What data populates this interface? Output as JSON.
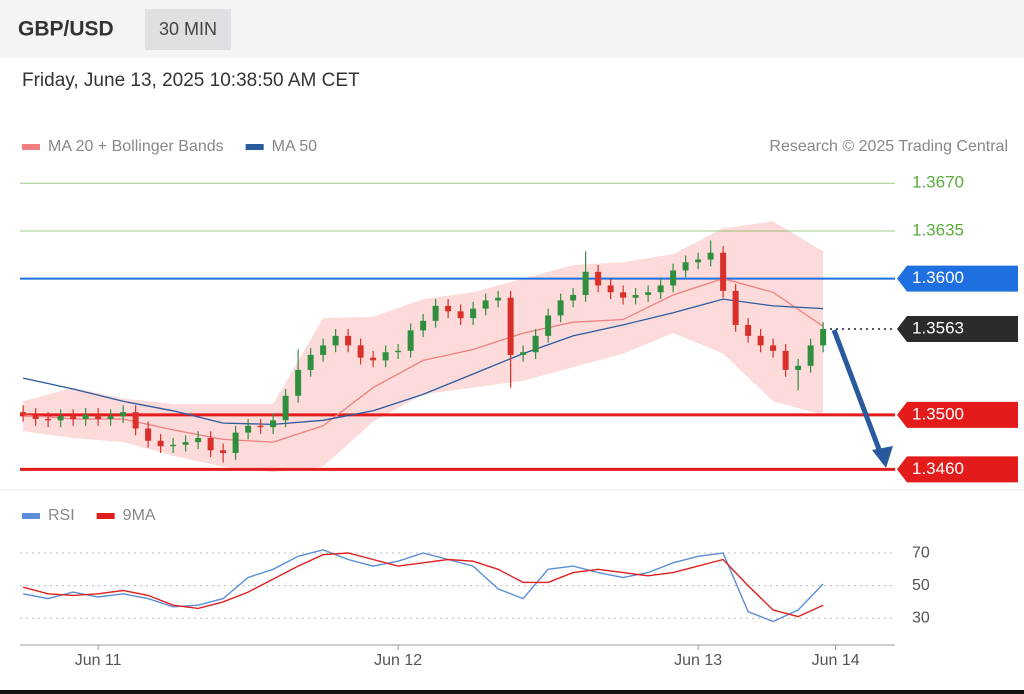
{
  "header": {
    "symbol": "GBP/USD",
    "timeframe": "30 MIN"
  },
  "timestamp": "Friday, June 13, 2025 10:38:50 AM CET",
  "chart_data": [
    {
      "type": "candlestick",
      "credit": "Research © 2025 Trading Central",
      "xlim": [
        -6.25,
        63.75
      ],
      "ylim": [
        1.345,
        1.369
      ],
      "up_color": "#2f8f3f",
      "down_color": "#d9302b",
      "x": [
        -6,
        -5,
        -4,
        -3,
        -2,
        -1,
        0,
        1,
        2,
        3,
        4,
        5,
        6,
        7,
        8,
        9,
        10,
        11,
        12,
        13,
        14,
        15,
        16,
        17,
        18,
        19,
        20,
        21,
        22,
        23,
        24,
        25,
        26,
        27,
        28,
        29,
        30,
        31,
        32,
        33,
        34,
        35,
        36,
        37,
        38,
        39,
        40,
        41,
        42,
        43,
        44,
        45,
        46,
        47,
        48,
        49,
        50,
        51,
        52,
        53,
        54,
        55,
        56,
        57,
        58
      ],
      "open": [
        1.3502,
        1.35,
        1.3497,
        1.3496,
        1.3499,
        1.3497,
        1.35,
        1.3497,
        1.3499,
        1.3502,
        1.349,
        1.3481,
        1.3477,
        1.3478,
        1.348,
        1.3483,
        1.3474,
        1.3472,
        1.3487,
        1.3492,
        1.3491,
        1.3496,
        1.3514,
        1.3533,
        1.3544,
        1.3551,
        1.3558,
        1.3551,
        1.3542,
        1.354,
        1.3546,
        1.3547,
        1.3562,
        1.3569,
        1.358,
        1.3576,
        1.3571,
        1.3578,
        1.3584,
        1.3586,
        1.3544,
        1.3546,
        1.3558,
        1.3573,
        1.3584,
        1.3588,
        1.3605,
        1.3595,
        1.359,
        1.3586,
        1.3588,
        1.359,
        1.3595,
        1.3606,
        1.3612,
        1.3614,
        1.3619,
        1.3591,
        1.3566,
        1.3558,
        1.3551,
        1.3547,
        1.3533,
        1.3536,
        1.3551
      ],
      "high": [
        1.3507,
        1.3505,
        1.3502,
        1.3504,
        1.3504,
        1.3505,
        1.3505,
        1.3504,
        1.3507,
        1.3507,
        1.3495,
        1.3486,
        1.3483,
        1.3485,
        1.3488,
        1.3488,
        1.3479,
        1.3492,
        1.3497,
        1.3497,
        1.3501,
        1.3519,
        1.3548,
        1.3549,
        1.3556,
        1.3563,
        1.3563,
        1.3556,
        1.3547,
        1.3551,
        1.3552,
        1.3567,
        1.3574,
        1.3585,
        1.3585,
        1.3581,
        1.3583,
        1.3589,
        1.3591,
        1.3591,
        1.3551,
        1.3563,
        1.3578,
        1.3589,
        1.3593,
        1.362,
        1.361,
        1.36,
        1.3595,
        1.3593,
        1.3595,
        1.36,
        1.3611,
        1.3617,
        1.3619,
        1.3628,
        1.3624,
        1.3596,
        1.3571,
        1.3563,
        1.3556,
        1.3552,
        1.3541,
        1.3556,
        1.3568
      ],
      "low": [
        1.3495,
        1.3492,
        1.3491,
        1.3491,
        1.3492,
        1.3492,
        1.3492,
        1.3492,
        1.3494,
        1.3485,
        1.3476,
        1.3472,
        1.3472,
        1.3473,
        1.3475,
        1.3469,
        1.3465,
        1.3467,
        1.3482,
        1.3486,
        1.3486,
        1.3491,
        1.3509,
        1.3528,
        1.3539,
        1.3546,
        1.3546,
        1.3537,
        1.3535,
        1.3535,
        1.3541,
        1.3542,
        1.3557,
        1.3564,
        1.3571,
        1.3566,
        1.3566,
        1.3573,
        1.3579,
        1.352,
        1.3539,
        1.3541,
        1.3553,
        1.3568,
        1.3579,
        1.3583,
        1.359,
        1.3585,
        1.3581,
        1.3581,
        1.3583,
        1.3585,
        1.359,
        1.3601,
        1.3607,
        1.3609,
        1.3586,
        1.3561,
        1.3553,
        1.3546,
        1.3542,
        1.3528,
        1.3518,
        1.3531,
        1.3546
      ],
      "close": [
        1.35,
        1.3497,
        1.3496,
        1.3499,
        1.3497,
        1.35,
        1.3497,
        1.3499,
        1.3502,
        1.349,
        1.3481,
        1.3477,
        1.3478,
        1.348,
        1.3483,
        1.3474,
        1.3472,
        1.3487,
        1.3492,
        1.3491,
        1.3496,
        1.3514,
        1.3533,
        1.3544,
        1.3551,
        1.3558,
        1.3551,
        1.3542,
        1.354,
        1.3546,
        1.3547,
        1.3562,
        1.3569,
        1.358,
        1.3576,
        1.3571,
        1.3578,
        1.3584,
        1.3586,
        1.3544,
        1.3546,
        1.3558,
        1.3573,
        1.3584,
        1.3588,
        1.3605,
        1.3595,
        1.359,
        1.3586,
        1.3588,
        1.359,
        1.3595,
        1.3606,
        1.3612,
        1.3614,
        1.3619,
        1.3591,
        1.3566,
        1.3558,
        1.3551,
        1.3547,
        1.3533,
        1.3536,
        1.3551,
        1.3563
      ],
      "series": [
        {
          "name": "MA 20 + Bollinger Bands",
          "color": "#f08080",
          "band_color": "#fdd5d5",
          "x": [
            -6,
            -2,
            2,
            6,
            10,
            14,
            18,
            22,
            26,
            30,
            34,
            38,
            42,
            46,
            50,
            54,
            58
          ],
          "values": [
            1.35,
            1.3497,
            1.3497,
            1.3489,
            1.3482,
            1.348,
            1.3492,
            1.352,
            1.354,
            1.3548,
            1.356,
            1.3568,
            1.357,
            1.3588,
            1.36,
            1.359,
            1.3565
          ],
          "upper": [
            1.351,
            1.352,
            1.3512,
            1.3508,
            1.3508,
            1.3508,
            1.3571,
            1.3572,
            1.3585,
            1.359,
            1.36,
            1.361,
            1.3612,
            1.3618,
            1.3637,
            1.3642,
            1.362
          ],
          "lower": [
            1.3488,
            1.3483,
            1.348,
            1.347,
            1.3462,
            1.3458,
            1.3462,
            1.3495,
            1.3515,
            1.352,
            1.3525,
            1.3535,
            1.3545,
            1.356,
            1.3545,
            1.351,
            1.35
          ]
        },
        {
          "name": "MA 50",
          "color": "#2a5a9e",
          "x": [
            -6,
            -2,
            2,
            6,
            10,
            14,
            18,
            22,
            26,
            30,
            34,
            38,
            42,
            46,
            50,
            54,
            58
          ],
          "values": [
            1.3527,
            1.3519,
            1.351,
            1.3503,
            1.3494,
            1.3493,
            1.3496,
            1.3503,
            1.3515,
            1.353,
            1.3545,
            1.3558,
            1.3566,
            1.3575,
            1.3585,
            1.358,
            1.3578
          ]
        }
      ],
      "levels": [
        {
          "value": 1.367,
          "label": "1.3670",
          "color": "#5aab3c",
          "tag": false,
          "dotted": false
        },
        {
          "value": 1.3635,
          "label": "1.3635",
          "color": "#5aab3c",
          "tag": false,
          "dotted": false
        },
        {
          "value": 1.36,
          "label": "1.3600",
          "color": "#1e6fe0",
          "tag": true,
          "dotted": false
        },
        {
          "value": 1.3563,
          "label": "1.3563",
          "color": "#2b2b2b",
          "tag": true,
          "dotted": true
        },
        {
          "value": 1.35,
          "label": "1.3500",
          "color": "#e31b1b",
          "tag": true,
          "dotted": false
        },
        {
          "value": 1.346,
          "label": "1.3460",
          "color": "#e31b1b",
          "tag": true,
          "dotted": false
        }
      ]
    },
    {
      "type": "line",
      "xlim": [
        -6.25,
        63.75
      ],
      "ylim": [
        16,
        78
      ],
      "yticks": [
        30,
        50,
        70
      ],
      "xticks": [
        {
          "value": 0,
          "label": "Jun 11"
        },
        {
          "value": 24,
          "label": "Jun 12"
        },
        {
          "value": 48,
          "label": "Jun 13"
        },
        {
          "value": 59,
          "label": "Jun 14"
        }
      ],
      "series": [
        {
          "name": "RSI",
          "color": "#5b8dd9",
          "x": [
            -6,
            -4,
            -2,
            0,
            2,
            4,
            6,
            8,
            10,
            12,
            14,
            16,
            18,
            20,
            22,
            24,
            26,
            28,
            30,
            32,
            34,
            36,
            38,
            40,
            42,
            44,
            46,
            48,
            50,
            52,
            54,
            56,
            58
          ],
          "values": [
            45,
            42,
            46,
            43,
            45,
            42,
            37,
            38,
            42,
            55,
            60,
            68,
            72,
            66,
            62,
            65,
            70,
            66,
            62,
            48,
            42,
            60,
            62,
            58,
            55,
            58,
            64,
            68,
            70,
            34,
            28,
            35,
            51
          ]
        },
        {
          "name": "9MA",
          "color": "#e02020",
          "x": [
            -6,
            -4,
            -2,
            0,
            2,
            4,
            6,
            8,
            10,
            12,
            14,
            16,
            18,
            20,
            22,
            24,
            26,
            28,
            30,
            32,
            34,
            36,
            38,
            40,
            42,
            44,
            46,
            48,
            50,
            52,
            54,
            56,
            58
          ],
          "values": [
            49,
            45,
            44,
            45,
            47,
            44,
            38,
            36,
            40,
            46,
            54,
            62,
            69,
            70,
            66,
            62,
            64,
            66,
            65,
            60,
            52,
            52,
            58,
            60,
            58,
            56,
            58,
            62,
            66,
            50,
            35,
            31,
            38
          ]
        }
      ]
    }
  ]
}
